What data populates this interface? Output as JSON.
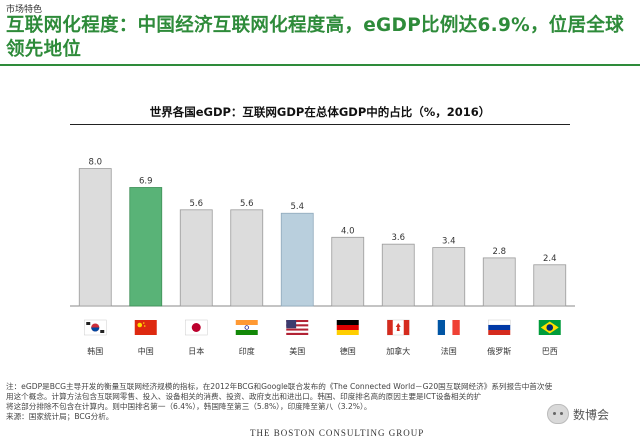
{
  "header": {
    "section_tag": "市场特色",
    "headline": "互联网化程度：中国经济互联网化程度高，eGDP比例达6.9%，位居全球领先地位"
  },
  "chart_data": {
    "type": "bar",
    "title": "世界各国eGDP：互联网GDP在总体GDP中的占比（%，2016）",
    "categories": [
      "韩国",
      "中国",
      "日本",
      "印度",
      "美国",
      "德国",
      "加拿大",
      "法国",
      "俄罗斯",
      "巴西"
    ],
    "values": [
      8.0,
      6.9,
      5.6,
      5.6,
      5.4,
      4.0,
      3.6,
      3.4,
      2.8,
      2.4
    ],
    "value_labels": [
      "8.0",
      "6.9",
      "5.6",
      "5.6",
      "5.4",
      "4.0",
      "3.6",
      "3.4",
      "2.8",
      "2.4"
    ],
    "flags": [
      "korea-flag-icon",
      "china-flag-icon",
      "japan-flag-icon",
      "india-flag-icon",
      "usa-flag-icon",
      "germany-flag-icon",
      "canada-flag-icon",
      "france-flag-icon",
      "russia-flag-icon",
      "brazil-flag-icon"
    ],
    "highlight": {
      "中国": "#59b377",
      "美国": "#b9cfdd"
    },
    "default_color": "#dcdcdc",
    "ylim": [
      0,
      8.5
    ],
    "grid": false,
    "xlabel": "",
    "ylabel": ""
  },
  "footnote": {
    "lines": [
      "注：eGDP是BCG主导开发的衡量互联网经济规模的指标，在2012年BCG和Google联合发布的《The Connected World－G20国互联网经济》系列报告中首次使",
      "用这个概念。计算方法包含互联网零售、投入、设备相关的消费、投资、政府支出和进出口。韩国、印度排名高的原因主要是ICT设备相关的扩",
      "将这部分排除不包含在计算内。则中国排名第一（6.4%），韩国降至第三（5.8%），印度降至第八（3.2%）。",
      "来源：国家统计局；BCG分析。"
    ]
  },
  "footer": {
    "logo_text": "THE BOSTON CONSULTING GROUP"
  },
  "watermark": {
    "text": "数博会"
  }
}
